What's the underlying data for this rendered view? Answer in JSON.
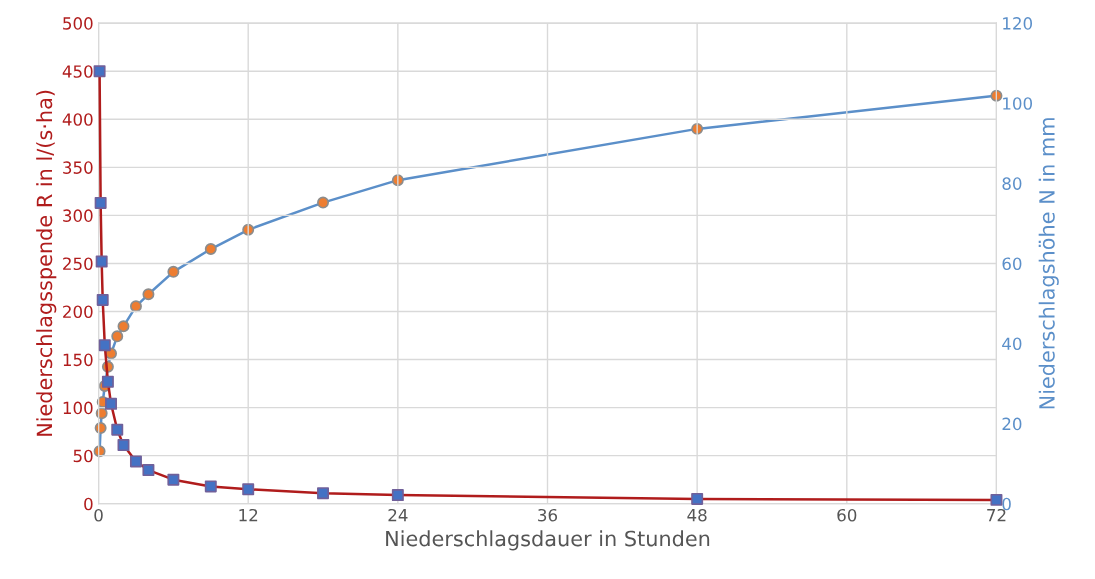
{
  "chart_data": {
    "type": "line",
    "xlabel": "Niederschlagsdauer in Stunden",
    "ylabel": "Niederschlagsspende R in l/(s·ha)",
    "y2label": "Niederschlagshöhe N in mm",
    "xlim": [
      0,
      72
    ],
    "xticks": [
      0,
      12,
      24,
      36,
      48,
      60,
      72
    ],
    "ylim": [
      0,
      500
    ],
    "yticks": [
      0,
      50,
      100,
      150,
      200,
      250,
      300,
      350,
      400,
      450,
      500
    ],
    "y2lim": [
      0,
      120
    ],
    "y2ticks": [
      0,
      20,
      40,
      60,
      80,
      100,
      120
    ],
    "grid": true,
    "series": [
      {
        "color": "#b01c1c",
        "marker": "square",
        "colors": [
          "#4472c4",
          "#4472c4",
          "#4472c4",
          "#4472c4",
          "#4472c4",
          "#4472c4",
          "#4472c4",
          "#4472c4",
          "#4472c4",
          "#4472c4",
          "#4472c4",
          "#4472c4",
          "#4472c4",
          "#4472c4",
          "#4472c4",
          "#4472c4",
          "#4472c4",
          "#4472c4"
        ],
        "x": [
          0.083,
          0.167,
          0.25,
          0.333,
          0.5,
          0.75,
          1,
          1.5,
          2,
          3,
          4,
          6,
          9,
          12,
          18,
          24,
          48,
          72
        ],
        "values": [
          450,
          313,
          252,
          212,
          165,
          127,
          104,
          77,
          61,
          44,
          35,
          25,
          18,
          15,
          11,
          9,
          5,
          4
        ]
      },
      {
        "color": "#5b8fc9",
        "marker": "circle",
        "colors": [
          "#ed7d31",
          "#ed7d31",
          "#ed7d31",
          "#ed7d31",
          "#ed7d31",
          "#ed7d31",
          "#ed7d31",
          "#ed7d31",
          "#ed7d31",
          "#ed7d31",
          "#ed7d31",
          "#ed7d31",
          "#ed7d31",
          "#ed7d31",
          "#ed7d31",
          "#ed7d31",
          "#ed7d31",
          "#ed7d31"
        ],
        "axis": "y2",
        "x": [
          0.083,
          0.167,
          0.25,
          0.333,
          0.5,
          0.75,
          1,
          1.5,
          2,
          3,
          4,
          6,
          9,
          12,
          18,
          24,
          48,
          72
        ],
        "values": [
          13.1,
          18.9,
          22.6,
          25.4,
          29.4,
          34.2,
          37.5,
          41.8,
          44.3,
          49.3,
          52.3,
          57.9,
          63.6,
          68.4,
          75.2,
          80.8,
          93.6,
          101.9
        ]
      }
    ]
  }
}
